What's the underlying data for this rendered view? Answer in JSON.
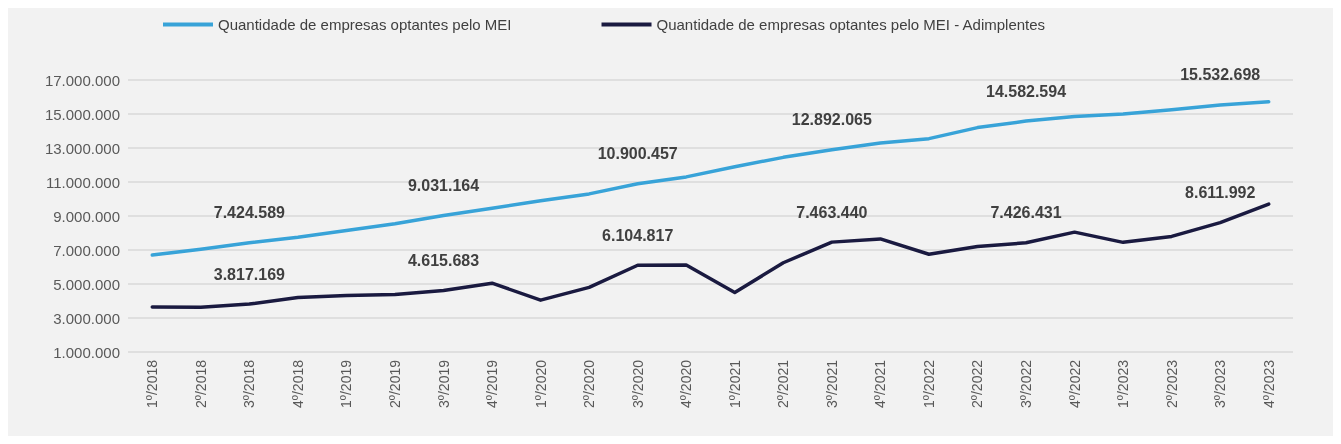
{
  "chart_data": {
    "type": "line",
    "categories": [
      "1º/2018",
      "2º/2018",
      "3º/2018",
      "4º/2018",
      "1º/2019",
      "2º/2019",
      "3º/2019",
      "4º/2019",
      "1º/2020",
      "2º/2020",
      "3º/2020",
      "4º/2020",
      "1º/2021",
      "2º/2021",
      "3º/2021",
      "4º/2021",
      "1º/2022",
      "2º/2022",
      "3º/2022",
      "4º/2022",
      "1º/2023",
      "2º/2023",
      "3º/2023",
      "4º/2023"
    ],
    "series": [
      {
        "name": "Quantidade de empresas optantes pelo MEI",
        "color": "#38a3d8",
        "values": [
          6700000,
          7050000,
          7424589,
          7750000,
          8150000,
          8550000,
          9031164,
          9450000,
          9900000,
          10300000,
          10900457,
          11300000,
          11900000,
          12450000,
          12892065,
          13300000,
          13550000,
          14200000,
          14582594,
          14850000,
          15000000,
          15250000,
          15532698,
          15720000
        ],
        "value_labels": [
          null,
          null,
          "7.424.589",
          null,
          null,
          null,
          "9.031.164",
          null,
          null,
          null,
          "10.900.457",
          null,
          null,
          null,
          "12.892.065",
          null,
          null,
          null,
          "14.582.594",
          null,
          null,
          null,
          "15.532.698",
          null
        ]
      },
      {
        "name": "Quantidade de empresas optantes pelo MEI - Adimplentes",
        "color": "#1a1a40",
        "values": [
          3650000,
          3630000,
          3817169,
          4200000,
          4330000,
          4380000,
          4615683,
          5050000,
          4050000,
          4800000,
          6104817,
          6120000,
          4500000,
          6250000,
          7463440,
          7650000,
          6750000,
          7200000,
          7426431,
          8050000,
          7450000,
          7800000,
          8611992,
          9700000
        ],
        "value_labels": [
          null,
          null,
          "3.817.169",
          null,
          null,
          null,
          "4.615.683",
          null,
          null,
          null,
          "6.104.817",
          null,
          null,
          null,
          "7.463.440",
          null,
          null,
          null,
          "7.426.431",
          null,
          null,
          null,
          "8.611.992",
          null
        ]
      }
    ],
    "ylim": [
      1000000,
      17000000
    ],
    "yticks": [
      {
        "value": 1000000,
        "label": "1.000.000"
      },
      {
        "value": 3000000,
        "label": "3.000.000"
      },
      {
        "value": 5000000,
        "label": "5.000.000"
      },
      {
        "value": 7000000,
        "label": "7.000.000"
      },
      {
        "value": 9000000,
        "label": "9.000.000"
      },
      {
        "value": 11000000,
        "label": "11.000.000"
      },
      {
        "value": 13000000,
        "label": "13.000.000"
      },
      {
        "value": 15000000,
        "label": "15.000.000"
      },
      {
        "value": 17000000,
        "label": "17.000.000"
      }
    ],
    "grid": "y",
    "legend": "top",
    "marker": "none",
    "line_style": "solid"
  }
}
